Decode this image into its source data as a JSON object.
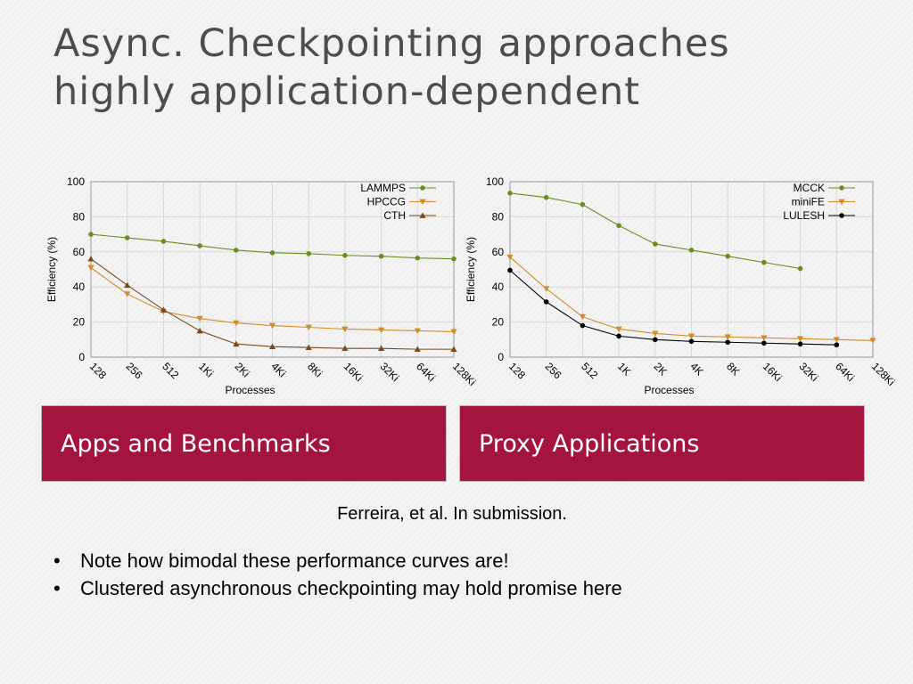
{
  "slide": {
    "title_line1": "Async. Checkpointing approaches",
    "title_line2": "highly application-dependent",
    "banner_left": "Apps and Benchmarks",
    "banner_right": "Proxy Applications",
    "citation": "Ferreira, et al. In submission.",
    "bullets": [
      "Note how bimodal these performance curves are!",
      "Clustered asynchronous checkpointing may hold promise here"
    ],
    "bullet_symbol": "•"
  },
  "chart_data": [
    {
      "type": "line",
      "xlabel": "Processes",
      "ylabel": "Efficiency (%)",
      "ylim": [
        0,
        100
      ],
      "yticks": [
        0,
        20,
        40,
        60,
        80,
        100
      ],
      "categories": [
        "128",
        "256",
        "512",
        "1Ki",
        "2Ki",
        "4Ki",
        "8Ki",
        "16Ki",
        "32Ki",
        "64Ki",
        "128Ki"
      ],
      "grid": true,
      "legend_position": "top-right",
      "series": [
        {
          "name": "LAMMPS",
          "color": "#6b8e23",
          "marker": "circle",
          "values": [
            70,
            68,
            66,
            63.5,
            61,
            59.5,
            59,
            58,
            57.5,
            56.5,
            56
          ]
        },
        {
          "name": "HPCCG",
          "color": "#d38b2a",
          "marker": "triangle-down",
          "values": [
            51,
            36,
            26,
            22,
            19.5,
            18,
            17,
            16,
            15.5,
            15,
            14.5
          ]
        },
        {
          "name": "CTH",
          "color": "#7a4a1e",
          "marker": "triangle-up",
          "values": [
            56,
            41,
            27,
            15,
            7.5,
            6,
            5.5,
            5,
            5,
            4.5,
            4.5
          ]
        }
      ]
    },
    {
      "type": "line",
      "xlabel": "Processes",
      "ylabel": "Efficiency (%)",
      "ylim": [
        0,
        100
      ],
      "yticks": [
        0,
        20,
        40,
        60,
        80,
        100
      ],
      "categories": [
        "128",
        "256",
        "512",
        "1K",
        "2K",
        "4K",
        "8K",
        "16Ki",
        "32Ki",
        "64Ki",
        "128Ki"
      ],
      "grid": true,
      "legend_position": "top-right",
      "series": [
        {
          "name": "MCCK",
          "color": "#6b8e23",
          "marker": "circle",
          "values": [
            93.5,
            91,
            87,
            75,
            64.5,
            61,
            57.5,
            54,
            50.5,
            null,
            null
          ]
        },
        {
          "name": "miniFE",
          "color": "#d38b2a",
          "marker": "triangle-down",
          "values": [
            57,
            39,
            23,
            16,
            13.5,
            12,
            11.5,
            11,
            10.5,
            10,
            9.5
          ]
        },
        {
          "name": "LULESH",
          "color": "#000000",
          "marker": "circle",
          "values": [
            49.5,
            31.5,
            18,
            12,
            10,
            9,
            8.5,
            8,
            7.5,
            7,
            null
          ]
        }
      ]
    }
  ]
}
